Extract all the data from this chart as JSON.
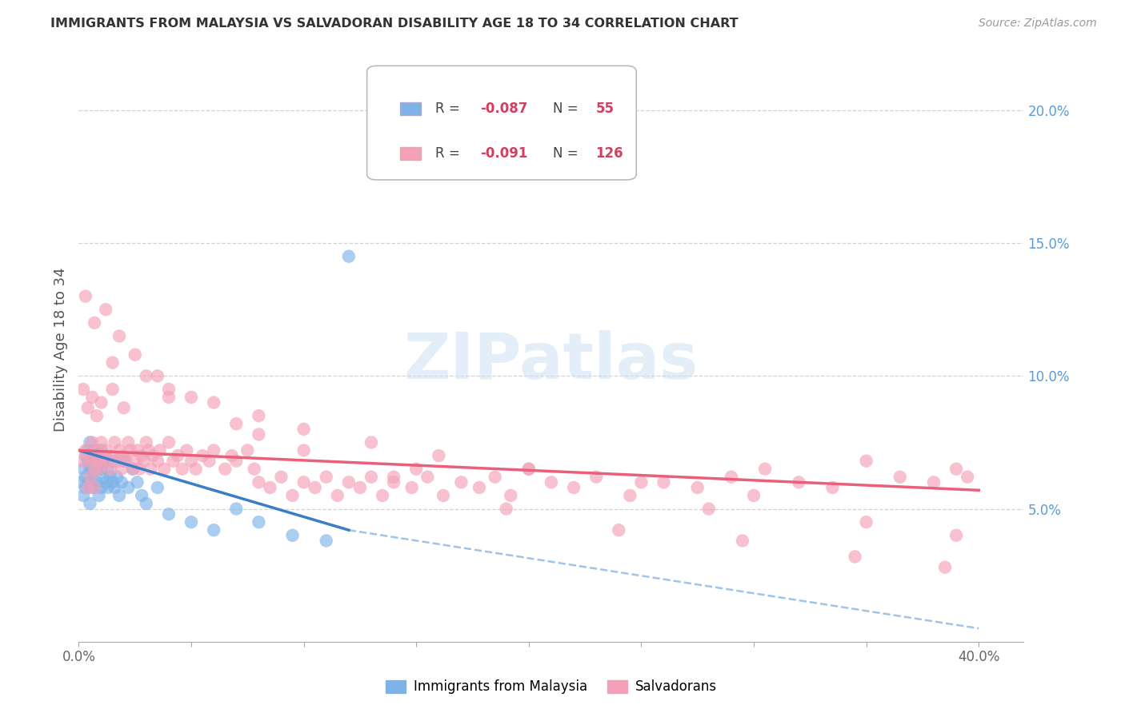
{
  "title": "IMMIGRANTS FROM MALAYSIA VS SALVADORAN DISABILITY AGE 18 TO 34 CORRELATION CHART",
  "source": "Source: ZipAtlas.com",
  "ylabel": "Disability Age 18 to 34",
  "xlim": [
    0.0,
    0.42
  ],
  "ylim": [
    0.0,
    0.22
  ],
  "xticks": [
    0.0,
    0.05,
    0.1,
    0.15,
    0.2,
    0.25,
    0.3,
    0.35,
    0.4
  ],
  "xticklabels": [
    "0.0%",
    "",
    "",
    "",
    "",
    "",
    "",
    "",
    "40.0%"
  ],
  "yticks_right": [
    0.05,
    0.1,
    0.15,
    0.2
  ],
  "yticklabels_right": [
    "5.0%",
    "10.0%",
    "15.0%",
    "20.0%"
  ],
  "series1_color": "#7eb3e8",
  "series2_color": "#f4a0b8",
  "trendline1_color": "#3a7dc9",
  "trendline2_color": "#e8607a",
  "trendline1_dashed_color": "#a0c4e8",
  "watermark": "ZIPatlas",
  "background_color": "#ffffff",
  "grid_color": "#c8c8c8",
  "axis_label_color": "#5b9bd5",
  "title_color": "#333333",
  "legend_box_color": "#dddddd",
  "malaysia_x": [
    0.001,
    0.002,
    0.002,
    0.003,
    0.003,
    0.003,
    0.004,
    0.004,
    0.004,
    0.005,
    0.005,
    0.005,
    0.005,
    0.006,
    0.006,
    0.006,
    0.007,
    0.007,
    0.007,
    0.008,
    0.008,
    0.008,
    0.009,
    0.009,
    0.01,
    0.01,
    0.01,
    0.011,
    0.011,
    0.012,
    0.012,
    0.013,
    0.013,
    0.014,
    0.015,
    0.015,
    0.016,
    0.017,
    0.018,
    0.019,
    0.02,
    0.022,
    0.024,
    0.026,
    0.028,
    0.03,
    0.035,
    0.04,
    0.05,
    0.06,
    0.07,
    0.08,
    0.095,
    0.11,
    0.12
  ],
  "malaysia_y": [
    0.06,
    0.065,
    0.055,
    0.07,
    0.062,
    0.058,
    0.068,
    0.072,
    0.06,
    0.075,
    0.065,
    0.058,
    0.052,
    0.07,
    0.064,
    0.06,
    0.068,
    0.072,
    0.058,
    0.065,
    0.07,
    0.06,
    0.055,
    0.068,
    0.072,
    0.065,
    0.058,
    0.068,
    0.062,
    0.07,
    0.06,
    0.065,
    0.058,
    0.062,
    0.068,
    0.06,
    0.058,
    0.062,
    0.055,
    0.06,
    0.068,
    0.058,
    0.065,
    0.06,
    0.055,
    0.052,
    0.058,
    0.048,
    0.045,
    0.042,
    0.05,
    0.045,
    0.04,
    0.038,
    0.145
  ],
  "salvadoran_x": [
    0.002,
    0.003,
    0.004,
    0.005,
    0.005,
    0.006,
    0.007,
    0.007,
    0.008,
    0.008,
    0.009,
    0.01,
    0.01,
    0.011,
    0.012,
    0.013,
    0.014,
    0.015,
    0.016,
    0.017,
    0.018,
    0.019,
    0.02,
    0.021,
    0.022,
    0.023,
    0.024,
    0.025,
    0.026,
    0.027,
    0.028,
    0.029,
    0.03,
    0.031,
    0.032,
    0.033,
    0.035,
    0.036,
    0.038,
    0.04,
    0.042,
    0.044,
    0.046,
    0.048,
    0.05,
    0.052,
    0.055,
    0.058,
    0.06,
    0.065,
    0.068,
    0.07,
    0.075,
    0.078,
    0.08,
    0.085,
    0.09,
    0.095,
    0.1,
    0.105,
    0.11,
    0.115,
    0.12,
    0.125,
    0.13,
    0.135,
    0.14,
    0.148,
    0.155,
    0.162,
    0.17,
    0.178,
    0.185,
    0.192,
    0.2,
    0.21,
    0.22,
    0.23,
    0.245,
    0.26,
    0.275,
    0.29,
    0.305,
    0.32,
    0.335,
    0.35,
    0.365,
    0.38,
    0.39,
    0.395,
    0.002,
    0.004,
    0.006,
    0.008,
    0.01,
    0.015,
    0.02,
    0.03,
    0.04,
    0.06,
    0.08,
    0.1,
    0.13,
    0.16,
    0.2,
    0.25,
    0.3,
    0.35,
    0.39,
    0.003,
    0.007,
    0.012,
    0.018,
    0.025,
    0.035,
    0.05,
    0.07,
    0.1,
    0.14,
    0.19,
    0.24,
    0.295,
    0.345,
    0.385,
    0.005,
    0.015,
    0.04,
    0.08,
    0.15,
    0.28
  ],
  "salvadoran_y": [
    0.068,
    0.072,
    0.058,
    0.07,
    0.062,
    0.075,
    0.065,
    0.058,
    0.072,
    0.068,
    0.065,
    0.075,
    0.068,
    0.07,
    0.072,
    0.068,
    0.065,
    0.07,
    0.075,
    0.068,
    0.072,
    0.065,
    0.07,
    0.068,
    0.075,
    0.072,
    0.065,
    0.068,
    0.072,
    0.065,
    0.07,
    0.068,
    0.075,
    0.072,
    0.065,
    0.07,
    0.068,
    0.072,
    0.065,
    0.075,
    0.068,
    0.07,
    0.065,
    0.072,
    0.068,
    0.065,
    0.07,
    0.068,
    0.072,
    0.065,
    0.07,
    0.068,
    0.072,
    0.065,
    0.06,
    0.058,
    0.062,
    0.055,
    0.06,
    0.058,
    0.062,
    0.055,
    0.06,
    0.058,
    0.062,
    0.055,
    0.06,
    0.058,
    0.062,
    0.055,
    0.06,
    0.058,
    0.062,
    0.055,
    0.065,
    0.06,
    0.058,
    0.062,
    0.055,
    0.06,
    0.058,
    0.062,
    0.065,
    0.06,
    0.058,
    0.068,
    0.062,
    0.06,
    0.065,
    0.062,
    0.095,
    0.088,
    0.092,
    0.085,
    0.09,
    0.095,
    0.088,
    0.1,
    0.095,
    0.09,
    0.085,
    0.08,
    0.075,
    0.07,
    0.065,
    0.06,
    0.055,
    0.045,
    0.04,
    0.13,
    0.12,
    0.125,
    0.115,
    0.108,
    0.1,
    0.092,
    0.082,
    0.072,
    0.062,
    0.05,
    0.042,
    0.038,
    0.032,
    0.028,
    0.068,
    0.105,
    0.092,
    0.078,
    0.065,
    0.05
  ]
}
